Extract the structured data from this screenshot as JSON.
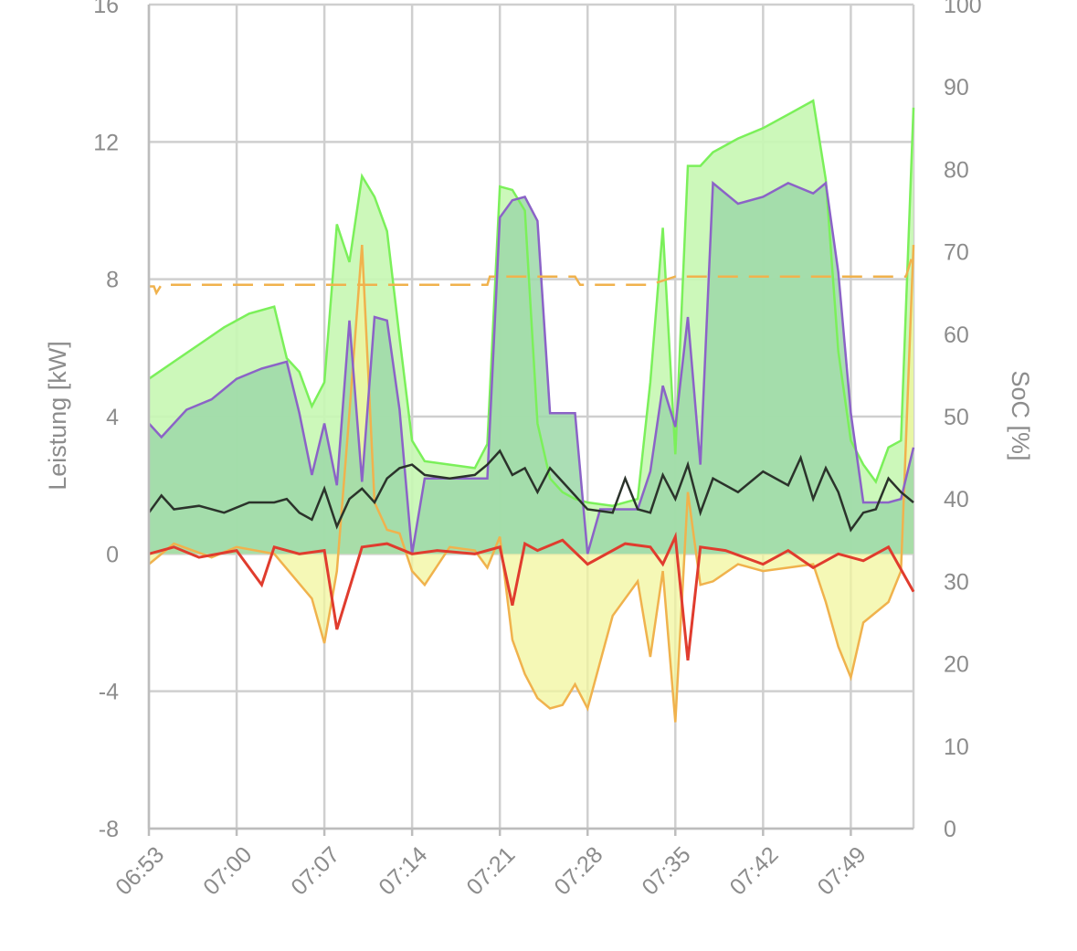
{
  "chart_data": {
    "type": "line",
    "title": "",
    "xlabel": "",
    "ylabel": "Leistung [kW]",
    "y2label": "SoC [%]",
    "ylim": [
      -8,
      16
    ],
    "y2lim": [
      0,
      100
    ],
    "yticks": [
      "-8",
      "-4",
      "0",
      "4",
      "8",
      "12",
      "16"
    ],
    "y2ticks": [
      "0",
      "10",
      "20",
      "30",
      "40",
      "50",
      "60",
      "70",
      "80",
      "90",
      "100"
    ],
    "xlim": [
      "06:53",
      "07:54"
    ],
    "xticks": [
      "06:53",
      "07:00",
      "07:07",
      "07:14",
      "07:21",
      "07:28",
      "07:35",
      "07:42",
      "07:49"
    ],
    "grid": true,
    "legend": "none",
    "colors": {
      "pv": "#7bf05a",
      "pv_fill": "#c6f7b3",
      "charging": "#8b63c7",
      "charging_fill": "#9cd8a8",
      "charging_fill_only": "#dcd9fb",
      "battery": "#f0b24d",
      "battery_fill": "#f2f59e",
      "house": "#2b332b",
      "grid": "#e03c2e",
      "soc": "#f0b24d"
    },
    "series": [
      {
        "x": [
          "06:53",
          "06:55",
          "06:57",
          "06:59",
          "07:01",
          "07:03",
          "07:04",
          "07:05",
          "07:06",
          "07:07",
          "07:08",
          "07:09",
          "07:10",
          "07:11",
          "07:12",
          "07:13",
          "07:14",
          "07:15",
          "07:17",
          "07:19",
          "07:20",
          "07:21",
          "07:22",
          "07:23",
          "07:24",
          "07:25",
          "07:26",
          "07:27",
          "07:28",
          "07:30",
          "07:32",
          "07:33",
          "07:34",
          "07:35",
          "07:36",
          "07:37",
          "07:38",
          "07:40",
          "07:42",
          "07:44",
          "07:46",
          "07:47",
          "07:48",
          "07:49",
          "07:50",
          "07:51",
          "07:52",
          "07:53",
          "07:54"
        ],
        "values": [
          5.1,
          5.6,
          6.1,
          6.6,
          7.0,
          7.2,
          5.7,
          5.3,
          4.3,
          5.0,
          9.6,
          8.5,
          11.0,
          10.4,
          9.4,
          6.3,
          3.3,
          2.7,
          2.6,
          2.5,
          3.2,
          10.7,
          10.6,
          10.0,
          3.8,
          2.2,
          1.8,
          1.6,
          1.5,
          1.4,
          1.6,
          5.0,
          9.5,
          2.9,
          11.3,
          11.3,
          11.7,
          12.1,
          12.4,
          12.8,
          13.2,
          10.9,
          5.9,
          3.3,
          2.6,
          2.1,
          3.1,
          3.3,
          13.0
        ]
      },
      {
        "x": [
          "06:53",
          "06:54",
          "06:56",
          "06:58",
          "07:00",
          "07:02",
          "07:04",
          "07:05",
          "07:06",
          "07:07",
          "07:08",
          "07:09",
          "07:10",
          "07:11",
          "07:12",
          "07:13",
          "07:14",
          "07:15",
          "07:19",
          "07:20",
          "07:21",
          "07:22",
          "07:23",
          "07:24",
          "07:25",
          "07:27",
          "07:28",
          "07:29",
          "07:32",
          "07:33",
          "07:34",
          "07:35",
          "07:36",
          "07:37",
          "07:38",
          "07:40",
          "07:42",
          "07:44",
          "07:46",
          "07:47",
          "07:48",
          "07:49",
          "07:50",
          "07:52",
          "07:53",
          "07:54"
        ],
        "values": [
          3.8,
          3.4,
          4.2,
          4.5,
          5.1,
          5.4,
          5.6,
          4.1,
          2.3,
          3.8,
          2.0,
          6.8,
          2.1,
          6.9,
          6.8,
          4.2,
          0.0,
          2.2,
          2.2,
          2.2,
          9.8,
          10.3,
          10.4,
          9.7,
          4.1,
          4.1,
          0.0,
          1.3,
          1.3,
          2.4,
          4.9,
          3.7,
          6.9,
          2.6,
          10.8,
          10.2,
          10.4,
          10.8,
          10.5,
          10.8,
          8.2,
          4.1,
          1.5,
          1.5,
          1.6,
          3.1
        ]
      },
      {
        "x": [
          "06:53",
          "06:55",
          "06:58",
          "07:00",
          "07:03",
          "07:06",
          "07:07",
          "07:08",
          "07:09",
          "07:10",
          "07:11",
          "07:12",
          "07:13",
          "07:14",
          "07:15",
          "07:17",
          "07:19",
          "07:20",
          "07:21",
          "07:22",
          "07:23",
          "07:24",
          "07:25",
          "07:26",
          "07:27",
          "07:28",
          "07:30",
          "07:32",
          "07:33",
          "07:34",
          "07:35",
          "07:36",
          "07:37",
          "07:38",
          "07:40",
          "07:42",
          "07:44",
          "07:46",
          "07:47",
          "07:48",
          "07:49",
          "07:50",
          "07:52",
          "07:53",
          "07:54"
        ],
        "values": [
          -0.3,
          0.3,
          -0.1,
          0.2,
          0.0,
          -1.3,
          -2.6,
          -0.5,
          4.1,
          9.0,
          1.5,
          0.7,
          0.6,
          -0.5,
          -0.9,
          0.2,
          0.1,
          -0.4,
          0.5,
          -2.5,
          -3.5,
          -4.2,
          -4.5,
          -4.4,
          -3.8,
          -4.5,
          -1.8,
          -0.8,
          -3.0,
          -0.5,
          -4.9,
          1.8,
          -0.9,
          -0.8,
          -0.3,
          -0.5,
          -0.4,
          -0.3,
          -1.4,
          -2.7,
          -3.6,
          -2.0,
          -1.4,
          -0.5,
          9.0
        ]
      },
      {
        "x": [
          "06:53",
          "06:54",
          "06:55",
          "06:57",
          "06:59",
          "07:01",
          "07:03",
          "07:04",
          "07:05",
          "07:06",
          "07:07",
          "07:08",
          "07:09",
          "07:10",
          "07:11",
          "07:12",
          "07:13",
          "07:14",
          "07:15",
          "07:17",
          "07:19",
          "07:20",
          "07:21",
          "07:22",
          "07:23",
          "07:24",
          "07:25",
          "07:26",
          "07:27",
          "07:28",
          "07:30",
          "07:31",
          "07:32",
          "07:33",
          "07:34",
          "07:35",
          "07:36",
          "07:37",
          "07:38",
          "07:40",
          "07:42",
          "07:44",
          "07:45",
          "07:46",
          "07:47",
          "07:48",
          "07:49",
          "07:50",
          "07:51",
          "07:52",
          "07:53",
          "07:54"
        ],
        "values": [
          1.2,
          1.7,
          1.3,
          1.4,
          1.2,
          1.5,
          1.5,
          1.6,
          1.2,
          1.0,
          1.9,
          0.8,
          1.6,
          1.9,
          1.5,
          2.2,
          2.5,
          2.6,
          2.3,
          2.2,
          2.3,
          2.6,
          3.0,
          2.3,
          2.5,
          1.8,
          2.5,
          2.1,
          1.7,
          1.3,
          1.2,
          2.2,
          1.3,
          1.2,
          2.3,
          1.6,
          2.6,
          1.2,
          2.2,
          1.8,
          2.4,
          2.0,
          2.8,
          1.6,
          2.5,
          1.8,
          0.7,
          1.2,
          1.3,
          2.2,
          1.8,
          1.5
        ]
      },
      {
        "x": [
          "06:53",
          "06:55",
          "06:57",
          "07:00",
          "07:02",
          "07:03",
          "07:05",
          "07:07",
          "07:08",
          "07:10",
          "07:12",
          "07:14",
          "07:16",
          "07:19",
          "07:21",
          "07:22",
          "07:23",
          "07:24",
          "07:26",
          "07:28",
          "07:31",
          "07:33",
          "07:34",
          "07:35",
          "07:36",
          "07:37",
          "07:39",
          "07:42",
          "07:44",
          "07:46",
          "07:48",
          "07:50",
          "07:52",
          "07:54"
        ],
        "values": [
          0.0,
          0.2,
          -0.1,
          0.1,
          -0.9,
          0.2,
          0.0,
          0.1,
          -2.2,
          0.2,
          0.3,
          0.0,
          0.1,
          0.0,
          0.2,
          -1.5,
          0.3,
          0.1,
          0.4,
          -0.3,
          0.3,
          0.2,
          -0.3,
          0.5,
          -3.1,
          0.2,
          0.1,
          -0.3,
          0.1,
          -0.4,
          0.0,
          -0.2,
          0.2,
          -1.1
        ]
      },
      {
        "x": [
          "06:53",
          "06:53.4",
          "06:53.6",
          "06:54",
          "07:20",
          "07:20.2",
          "07:27",
          "07:27.4",
          "07:33",
          "07:35",
          "07:53.4",
          "07:54"
        ],
        "values": [
          65.8,
          65.8,
          65.0,
          66.0,
          66.0,
          67.0,
          67.0,
          66.0,
          66.0,
          67.0,
          67.0,
          70.0
        ]
      }
    ]
  }
}
